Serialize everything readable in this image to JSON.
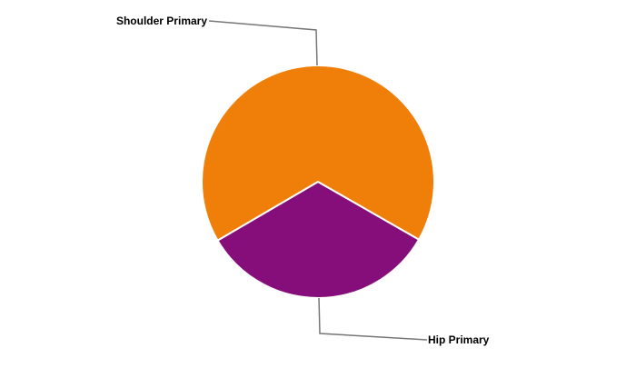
{
  "chart_data": {
    "type": "pie",
    "categories": [
      "Hip Primary",
      "Shoulder Primary"
    ],
    "values": [
      33.3,
      66.7
    ],
    "colors": [
      "#860e7a",
      "#f07f09"
    ],
    "legend": "none",
    "labels": "outside with leader lines"
  }
}
